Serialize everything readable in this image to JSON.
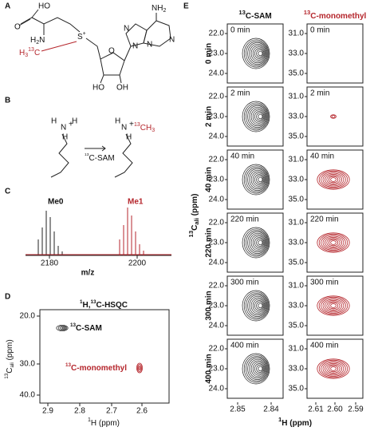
{
  "A": {
    "label": "A",
    "o": "O",
    "ho": "HO",
    "h2n": [
      "H",
      "2",
      "N"
    ],
    "s": [
      "S",
      "+"
    ],
    "methyl": [
      "H",
      "3",
      "13",
      "C"
    ],
    "nh2": [
      "NH",
      "2"
    ],
    "n": [
      "N",
      "N",
      "N",
      "N"
    ],
    "ho2": "HO",
    "oh": "OH",
    "o2": "O"
  },
  "B": {
    "label": "B",
    "left": [
      "H",
      "H",
      "N",
      "+",
      "H"
    ],
    "right": [
      "H",
      "H",
      "N",
      "+",
      "13",
      "CH",
      "3"
    ],
    "arrow": [
      "13",
      "C-SAM"
    ]
  },
  "C": {
    "label": "C",
    "me0": "Me0",
    "me1": "Me1",
    "xticks": [
      "2180",
      "2200"
    ],
    "xlabel": "m/z"
  },
  "D": {
    "label": "D",
    "title": [
      "1",
      "H,",
      "13",
      "C-HSQC"
    ],
    "ylabel": [
      "13",
      "C",
      "ali",
      " (ppm)"
    ],
    "xlabel": [
      "1",
      "H (ppm)"
    ],
    "yticks": [
      "20.0",
      "30.0",
      "40.0"
    ],
    "xticks": [
      "2.9",
      "2.8",
      "2.7",
      "2.6"
    ],
    "sam": [
      "13",
      "C-SAM"
    ],
    "mono": [
      "13",
      "C-monomethyl"
    ]
  },
  "E": {
    "label": "E",
    "headers": [
      [
        "13",
        "C-SAM"
      ],
      [
        "13",
        "C-monomethyl"
      ]
    ],
    "times": [
      "0 min",
      "2 min",
      "40 min",
      "220 min",
      "300 min",
      "400 min"
    ],
    "yticks_left": [
      "22.0",
      "23.0",
      "24.0"
    ],
    "yticks_right": [
      "31.0",
      "33.0",
      "35.0"
    ],
    "xticks_left": [
      "2.85",
      "2.84"
    ],
    "xticks_right": [
      "2.61",
      "2.60",
      "2.59"
    ],
    "ylabel": [
      "13",
      "C",
      "ali",
      " (ppm)"
    ],
    "xlabel": [
      "1",
      "H (ppm)"
    ]
  }
}
